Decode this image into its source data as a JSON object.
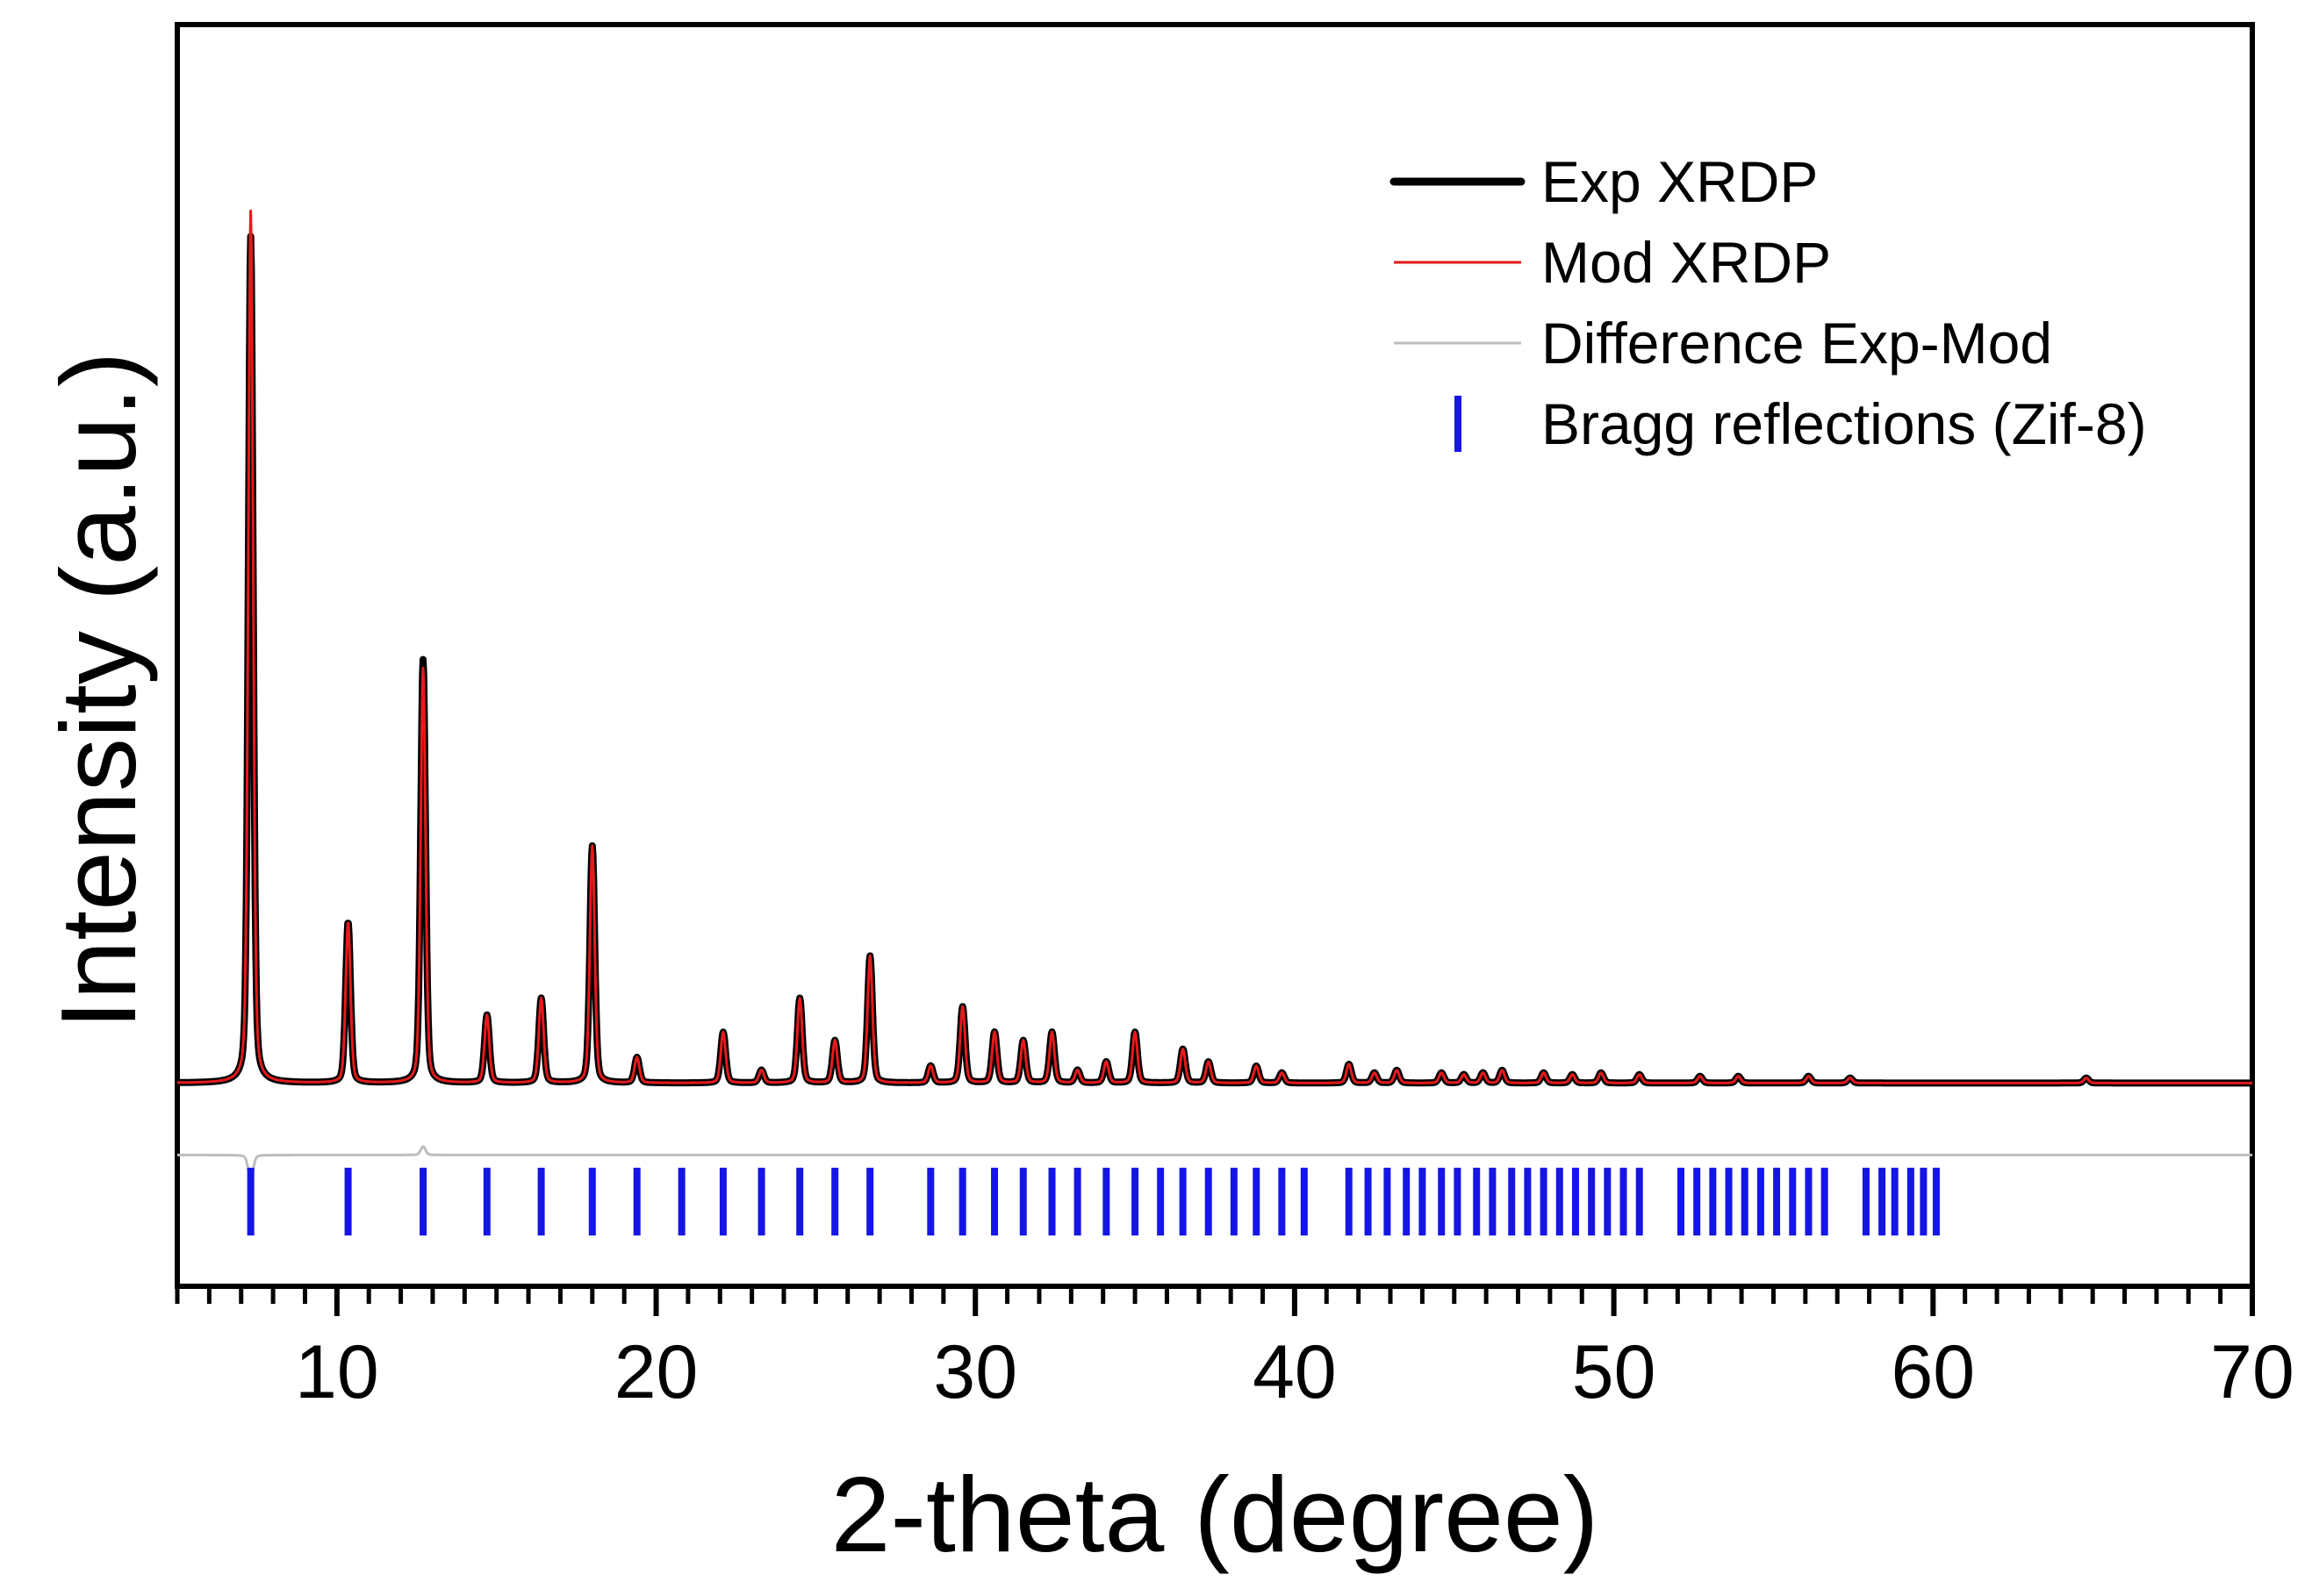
{
  "chart_data": {
    "type": "line",
    "title": "",
    "xlabel": "2-theta (degree)",
    "ylabel": "Intensity (a.u.)",
    "xlim": [
      5,
      70
    ],
    "ylim": [
      -0.24,
      1.25
    ],
    "x_major_ticks": [
      10,
      20,
      30,
      40,
      50,
      60,
      70
    ],
    "x_tick_labels": [
      "10",
      "20",
      "30",
      "40",
      "50",
      "60",
      "70"
    ],
    "x_minor_step": 1,
    "yticks": [],
    "grid": false,
    "legend_position": "top-right",
    "baseline": 0,
    "difference_offset": -0.085,
    "bragg_row": [
      -0.18,
      -0.1
    ],
    "peak_width": 0.09,
    "series": [
      {
        "name": "Exp XRDP",
        "color": "#000000",
        "style": "thick-line"
      },
      {
        "name": "Mod XRDP",
        "color": "#e41a1c",
        "style": "thin-line"
      },
      {
        "name": "Difference Exp-Mod",
        "color": "#bdbdbd",
        "style": "thin-line"
      },
      {
        "name": "Bragg reflections (Zif-8)",
        "color": "#1515e6",
        "style": "tick-marks"
      }
    ],
    "peaks": [
      {
        "x": 7.3,
        "exp": 1.0,
        "mod": 1.03
      },
      {
        "x": 10.35,
        "exp": 0.19,
        "mod": 0.19
      },
      {
        "x": 12.7,
        "exp": 0.5,
        "mod": 0.49
      },
      {
        "x": 14.7,
        "exp": 0.08,
        "mod": 0.08
      },
      {
        "x": 16.4,
        "exp": 0.1,
        "mod": 0.1
      },
      {
        "x": 18.0,
        "exp": 0.28,
        "mod": 0.28
      },
      {
        "x": 19.4,
        "exp": 0.03,
        "mod": 0.03
      },
      {
        "x": 22.1,
        "exp": 0.06,
        "mod": 0.06
      },
      {
        "x": 23.3,
        "exp": 0.015,
        "mod": 0.015
      },
      {
        "x": 24.5,
        "exp": 0.1,
        "mod": 0.1
      },
      {
        "x": 25.6,
        "exp": 0.05,
        "mod": 0.05
      },
      {
        "x": 26.7,
        "exp": 0.15,
        "mod": 0.15
      },
      {
        "x": 28.6,
        "exp": 0.02,
        "mod": 0.02
      },
      {
        "x": 29.6,
        "exp": 0.09,
        "mod": 0.09
      },
      {
        "x": 30.6,
        "exp": 0.06,
        "mod": 0.06
      },
      {
        "x": 31.5,
        "exp": 0.05,
        "mod": 0.05
      },
      {
        "x": 32.4,
        "exp": 0.06,
        "mod": 0.06
      },
      {
        "x": 33.2,
        "exp": 0.015,
        "mod": 0.015
      },
      {
        "x": 34.1,
        "exp": 0.025,
        "mod": 0.025
      },
      {
        "x": 35.0,
        "exp": 0.06,
        "mod": 0.06
      },
      {
        "x": 36.5,
        "exp": 0.04,
        "mod": 0.04
      },
      {
        "x": 37.3,
        "exp": 0.025,
        "mod": 0.025
      },
      {
        "x": 38.8,
        "exp": 0.02,
        "mod": 0.02
      },
      {
        "x": 39.6,
        "exp": 0.012,
        "mod": 0.012
      },
      {
        "x": 41.7,
        "exp": 0.022,
        "mod": 0.022
      },
      {
        "x": 42.5,
        "exp": 0.012,
        "mod": 0.012
      },
      {
        "x": 43.2,
        "exp": 0.015,
        "mod": 0.015
      },
      {
        "x": 44.6,
        "exp": 0.012,
        "mod": 0.012
      },
      {
        "x": 45.3,
        "exp": 0.01,
        "mod": 0.01
      },
      {
        "x": 45.9,
        "exp": 0.012,
        "mod": 0.012
      },
      {
        "x": 46.5,
        "exp": 0.015,
        "mod": 0.015
      },
      {
        "x": 47.8,
        "exp": 0.012,
        "mod": 0.012
      },
      {
        "x": 48.7,
        "exp": 0.01,
        "mod": 0.01
      },
      {
        "x": 49.6,
        "exp": 0.012,
        "mod": 0.012
      },
      {
        "x": 50.8,
        "exp": 0.01,
        "mod": 0.01
      },
      {
        "x": 52.7,
        "exp": 0.008,
        "mod": 0.008
      },
      {
        "x": 53.9,
        "exp": 0.008,
        "mod": 0.008
      },
      {
        "x": 56.1,
        "exp": 0.008,
        "mod": 0.008
      },
      {
        "x": 57.4,
        "exp": 0.006,
        "mod": 0.006
      },
      {
        "x": 64.8,
        "exp": 0.006,
        "mod": 0.006
      }
    ],
    "bragg_reflections": [
      7.3,
      10.35,
      12.7,
      14.7,
      16.4,
      18.0,
      19.4,
      20.8,
      22.1,
      23.3,
      24.5,
      25.6,
      26.7,
      28.6,
      29.6,
      30.6,
      31.5,
      32.4,
      33.2,
      34.1,
      35.0,
      35.8,
      36.5,
      37.3,
      38.1,
      38.8,
      39.6,
      40.3,
      41.7,
      42.3,
      42.9,
      43.5,
      44.0,
      44.6,
      45.1,
      45.7,
      46.2,
      46.8,
      47.3,
      47.8,
      48.3,
      48.8,
      49.3,
      49.8,
      50.3,
      50.8,
      52.1,
      52.6,
      53.1,
      53.6,
      54.1,
      54.6,
      55.1,
      55.6,
      56.1,
      56.6,
      57.9,
      58.4,
      58.8,
      59.3,
      59.7,
      60.1
    ]
  }
}
